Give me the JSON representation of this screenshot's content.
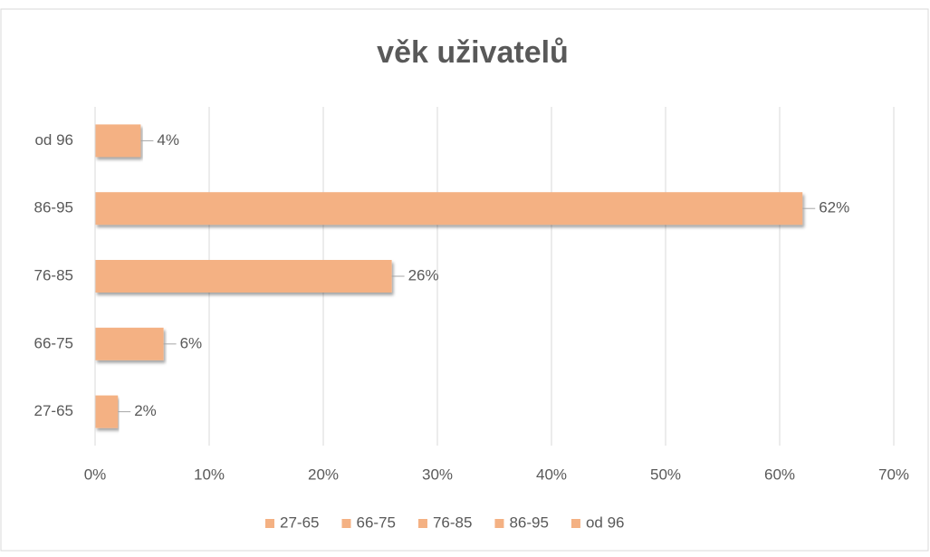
{
  "chart_data": {
    "type": "bar",
    "orientation": "horizontal",
    "title": "věk uživatelů",
    "categories": [
      "27-65",
      "66-75",
      "76-85",
      "86-95",
      "od 96"
    ],
    "values": [
      2,
      6,
      26,
      62,
      4
    ],
    "value_labels": [
      "2%",
      "6%",
      "26%",
      "62%",
      "4%"
    ],
    "color": "#f4b183",
    "xlim": [
      0,
      70
    ],
    "xticks": [
      {
        "value": 0,
        "label": "0%"
      },
      {
        "value": 10,
        "label": "10%"
      },
      {
        "value": 20,
        "label": "20%"
      },
      {
        "value": 30,
        "label": "30%"
      },
      {
        "value": 40,
        "label": "40%"
      },
      {
        "value": 50,
        "label": "50%"
      },
      {
        "value": 60,
        "label": "60%"
      },
      {
        "value": 70,
        "label": "70%"
      }
    ],
    "grid": true,
    "legend": "bottom"
  }
}
